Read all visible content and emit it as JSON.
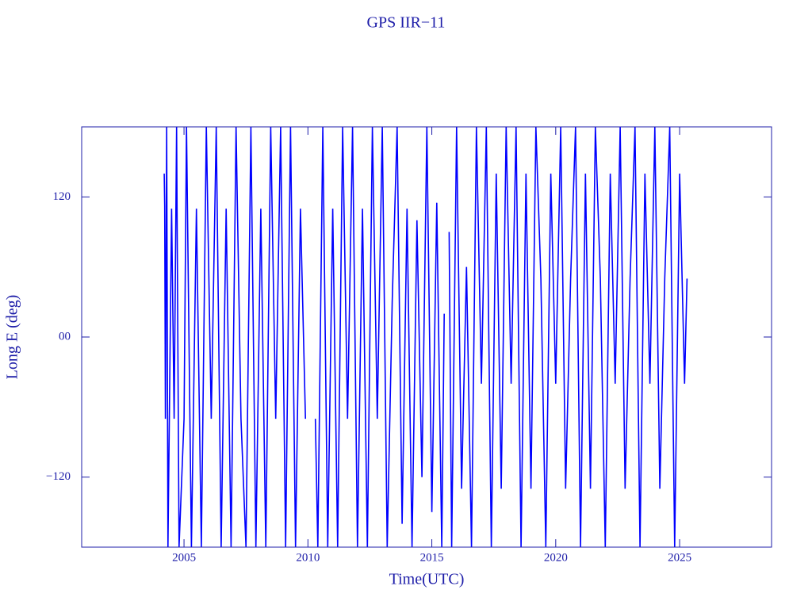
{
  "chart_data": {
    "type": "line",
    "title": "GPS IIR−11",
    "xlabel": "Time(UTC)",
    "ylabel": "Long E (deg)",
    "x": [
      2004.2,
      2004.22,
      2004.25,
      2004.3,
      2004.35,
      2004.5,
      2004.6,
      2004.7,
      2004.8,
      2005.0,
      2005.1,
      2005.3,
      2005.5,
      2005.7,
      2005.9,
      2006.1,
      2006.3,
      2006.5,
      2006.7,
      2006.9,
      2007.1,
      2007.3,
      2007.5,
      2007.7,
      2007.9,
      2008.1,
      2008.3,
      2008.5,
      2008.7,
      2008.9,
      2009.1,
      2009.3,
      2009.5,
      2009.7,
      2009.9,
      2010.0,
      2010.3,
      2010.4,
      2010.6,
      2010.8,
      2011.0,
      2011.2,
      2011.4,
      2011.6,
      2011.8,
      2012.0,
      2012.2,
      2012.4,
      2012.6,
      2012.8,
      2013.0,
      2013.2,
      2013.4,
      2013.6,
      2013.8,
      2014.0,
      2014.2,
      2014.4,
      2014.6,
      2014.8,
      2015.0,
      2015.2,
      2015.4,
      2015.5,
      2015.6,
      2015.7,
      2015.8,
      2016.0,
      2016.2,
      2016.4,
      2016.6,
      2016.8,
      2017.0,
      2017.2,
      2017.4,
      2017.6,
      2017.8,
      2018.0,
      2018.2,
      2018.4,
      2018.6,
      2018.8,
      2019.0,
      2019.2,
      2019.4,
      2019.6,
      2019.8,
      2020.0,
      2020.2,
      2020.4,
      2020.6,
      2020.8,
      2021.0,
      2021.2,
      2021.4,
      2021.6,
      2021.8,
      2022.0,
      2022.2,
      2022.4,
      2022.6,
      2022.8,
      2023.0,
      2023.2,
      2023.4,
      2023.6,
      2023.8,
      2024.0,
      2024.2,
      2024.4,
      2024.6,
      2024.8,
      2025.0,
      2025.2,
      2025.3
    ],
    "series": [
      {
        "color": "#0000ff",
        "values": [
          140,
          112,
          -70,
          180,
          -180,
          110,
          -70,
          180,
          -180,
          -70,
          180,
          -180,
          110,
          -180,
          180,
          -70,
          180,
          -180,
          110,
          -180,
          180,
          -70,
          -180,
          180,
          -180,
          110,
          -180,
          180,
          -70,
          180,
          -180,
          180,
          -180,
          110,
          -70,
          null,
          -70,
          -180,
          180,
          -180,
          110,
          -180,
          180,
          -70,
          180,
          -180,
          110,
          -180,
          180,
          -70,
          180,
          -180,
          30,
          180,
          -160,
          110,
          -180,
          100,
          -120,
          180,
          -150,
          115,
          -180,
          20,
          null,
          90,
          -180,
          180,
          -130,
          60,
          -180,
          180,
          -40,
          180,
          -180,
          140,
          -130,
          180,
          -40,
          180,
          -180,
          140,
          -130,
          180,
          50,
          -180,
          140,
          -40,
          180,
          -130,
          50,
          180,
          -180,
          140,
          -130,
          180,
          50,
          -180,
          140,
          -40,
          180,
          -130,
          50,
          180,
          -180,
          140,
          -40,
          180,
          -130,
          50,
          180,
          -180,
          140,
          -40,
          50
        ]
      }
    ],
    "xlim": [
      2000.87,
      2028.71
    ],
    "ylim": [
      -180,
      180
    ],
    "xticks": [
      2005,
      2010,
      2015,
      2020,
      2025
    ],
    "yticks": [
      {
        "value": -120,
        "label": "−120"
      },
      {
        "value": 0,
        "label": "00"
      },
      120
    ]
  }
}
